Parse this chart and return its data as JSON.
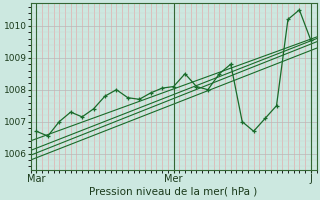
{
  "title": "",
  "xlabel": "Pression niveau de la mer( hPa )",
  "ylabel": "",
  "bg_color": "#cce8e0",
  "plot_bg_color": "#cce8e0",
  "line_color": "#1a6b2a",
  "marker_color": "#1a6b2a",
  "ylim": [
    1005.5,
    1010.7
  ],
  "xlim": [
    0,
    50
  ],
  "yticks": [
    1006,
    1007,
    1008,
    1009,
    1010
  ],
  "xtick_labels": [
    "Mar",
    "Mer",
    "J"
  ],
  "xtick_positions": [
    1,
    25,
    49
  ],
  "vline_positions": [
    1,
    25,
    49
  ],
  "series_straight": [
    {
      "x": [
        0,
        50
      ],
      "y": [
        1006.4,
        1009.65
      ]
    },
    {
      "x": [
        0,
        50
      ],
      "y": [
        1006.1,
        1009.6
      ]
    },
    {
      "x": [
        0,
        50
      ],
      "y": [
        1005.95,
        1009.5
      ]
    },
    {
      "x": [
        0,
        50
      ],
      "y": [
        1005.8,
        1009.3
      ]
    }
  ],
  "series_zigzag": {
    "x": [
      1,
      3,
      5,
      7,
      9,
      11,
      13,
      15,
      17,
      19,
      21,
      23,
      25,
      27,
      29,
      31,
      33,
      35,
      37,
      39,
      41,
      43,
      45,
      47,
      49
    ],
    "y": [
      1006.7,
      1006.55,
      1007.0,
      1007.3,
      1007.15,
      1007.4,
      1007.8,
      1008.0,
      1007.75,
      1007.7,
      1007.9,
      1008.05,
      1008.1,
      1008.5,
      1008.1,
      1008.0,
      1008.5,
      1008.8,
      1007.0,
      1006.7,
      1007.1,
      1007.5,
      1010.2,
      1010.5,
      1009.55
    ]
  }
}
